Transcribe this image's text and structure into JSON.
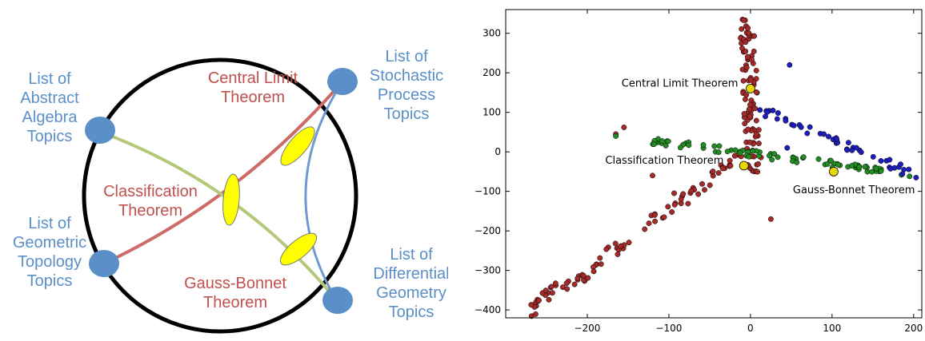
{
  "diagram": {
    "nodes": [
      {
        "id": "abstract",
        "lines": [
          "List of",
          "Abstract",
          "Algebra",
          "Topics"
        ]
      },
      {
        "id": "geometric",
        "lines": [
          "List of",
          "Geometric",
          "Topology",
          "Topics"
        ]
      },
      {
        "id": "stochastic",
        "lines": [
          "List of",
          "Stochastic",
          "Process",
          "Topics"
        ]
      },
      {
        "id": "differential",
        "lines": [
          "List of",
          "Differential",
          "Geometry",
          "Topics"
        ]
      }
    ],
    "theorems": [
      {
        "id": "clt",
        "lines": [
          "Central Limit",
          "Theorem"
        ]
      },
      {
        "id": "classification",
        "lines": [
          "Classification",
          "Theorem"
        ]
      },
      {
        "id": "gauss",
        "lines": [
          "Gauss-Bonnet",
          "Theorem"
        ]
      }
    ],
    "colors": {
      "node": "#5b8fc7",
      "theorem_text": "#c0504d",
      "red_edge": "#cd6b68",
      "green_edge": "#b4c87a",
      "blue_edge": "#6f99cf",
      "ellipse": "#ffff00",
      "circle": "#000000"
    }
  },
  "chart_data": {
    "type": "scatter",
    "xlim": [
      -300,
      210
    ],
    "ylim": [
      -420,
      360
    ],
    "xticks": [
      -200,
      -100,
      0,
      100,
      200
    ],
    "yticks": [
      -400,
      -300,
      -200,
      -100,
      0,
      100,
      200,
      300
    ],
    "series": [
      {
        "color": "#a52a2a",
        "clusters": [
          {
            "kind": "seg",
            "from": [
              -5,
              335
            ],
            "to": [
              5,
              -55
            ],
            "n": 95,
            "spread": [
              9,
              0
            ]
          },
          {
            "kind": "seg",
            "from": [
              -5,
              0
            ],
            "to": [
              -275,
              -410
            ],
            "n": 90,
            "spread": [
              10,
              18
            ]
          }
        ],
        "points": [
          [
            -155,
            62
          ],
          [
            -165,
            45
          ],
          [
            -120,
            -60
          ],
          [
            25,
            -170
          ],
          [
            -85,
            -120
          ]
        ]
      },
      {
        "color": "#228b22",
        "clusters": [
          {
            "kind": "seg",
            "from": [
              -125,
              30
            ],
            "to": [
              170,
              -50
            ],
            "n": 80,
            "spread": [
              0,
              9
            ]
          }
        ],
        "points": [
          [
            -165,
            40
          ],
          [
            195,
            -62
          ],
          [
            185,
            -58
          ]
        ]
      },
      {
        "color": "#1e1ebe",
        "clusters": [
          {
            "kind": "seg",
            "from": [
              0,
              120
            ],
            "to": [
              205,
              -65
            ],
            "n": 45,
            "spread": [
              7,
              9
            ]
          }
        ],
        "points": [
          [
            48,
            220
          ],
          [
            90,
            45
          ],
          [
            45,
            10
          ]
        ]
      }
    ],
    "highlights": [
      {
        "x": 0,
        "y": 160,
        "label": "Central Limit Theorem",
        "lx": -158,
        "ly": 165
      },
      {
        "x": -8,
        "y": -35,
        "label": "Classification Theorem",
        "lx": -178,
        "ly": -30
      },
      {
        "x": 102,
        "y": -50,
        "label": "Gauss-Bonnet Theorem",
        "lx": 52,
        "ly": -105
      }
    ],
    "highlight_color": "#e6d800"
  }
}
